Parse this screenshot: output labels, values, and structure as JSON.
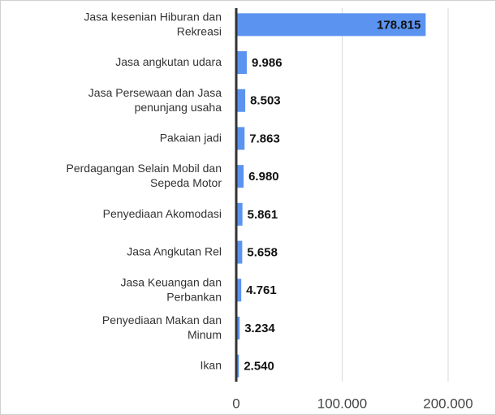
{
  "chart_data": {
    "type": "bar",
    "orientation": "horizontal",
    "categories": [
      "Jasa kesenian Hiburan dan\nRekreasi",
      "Jasa angkutan udara",
      "Jasa Persewaan dan Jasa\npenunjang usaha",
      "Pakaian jadi",
      "Perdagangan Selain Mobil dan\nSepeda Motor",
      "Penyediaan Akomodasi",
      "Jasa Angkutan Rel",
      "Jasa Keuangan dan\nPerbankan",
      "Penyediaan Makan dan\nMinum",
      "Ikan"
    ],
    "values": [
      178815,
      9986,
      8503,
      7863,
      6980,
      5861,
      5658,
      4761,
      3234,
      2540
    ],
    "value_labels": [
      "178.815",
      "9.986",
      "8.503",
      "7.863",
      "6.980",
      "5.861",
      "5.658",
      "4.761",
      "3.234",
      "2.540"
    ],
    "color": "#5b93f0",
    "xlim": [
      0,
      200000
    ],
    "xticks": [
      0,
      {
        "value": 100000,
        "label": "100.000"
      },
      {
        "value": 200000,
        "label": "200.000"
      }
    ],
    "grid": true
  }
}
